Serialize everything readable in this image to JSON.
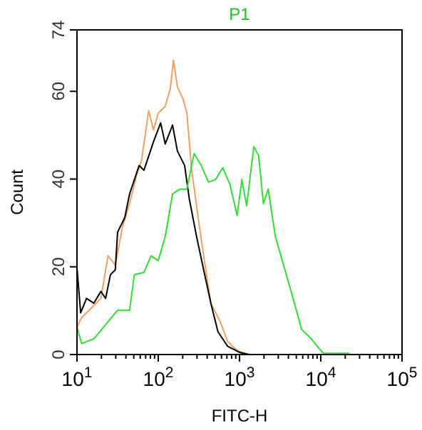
{
  "chart_data": {
    "type": "line",
    "title": "P1",
    "xlabel": "FITC-H",
    "ylabel": "Count",
    "log": "x",
    "xlim": [
      10,
      100000
    ],
    "ylim": [
      0,
      74
    ],
    "xticks": [
      {
        "value": 10,
        "label": "10$^{1}$"
      },
      {
        "value": 20,
        "label": null
      },
      {
        "value": 30,
        "label": null
      },
      {
        "value": 40,
        "label": null
      },
      {
        "value": 50,
        "label": null
      },
      {
        "value": 60,
        "label": null
      },
      {
        "value": 70,
        "label": null
      },
      {
        "value": 80,
        "label": null
      },
      {
        "value": 90,
        "label": null
      },
      {
        "value": 100,
        "label": "10$^{2}$"
      },
      {
        "value": 200,
        "label": null
      },
      {
        "value": 300,
        "label": null
      },
      {
        "value": 400,
        "label": null
      },
      {
        "value": 500,
        "label": null
      },
      {
        "value": 600,
        "label": null
      },
      {
        "value": 700,
        "label": null
      },
      {
        "value": 800,
        "label": null
      },
      {
        "value": 900,
        "label": null
      },
      {
        "value": 1000,
        "label": "10$^{3}$"
      },
      {
        "value": 2000,
        "label": null
      },
      {
        "value": 3000,
        "label": null
      },
      {
        "value": 4000,
        "label": null
      },
      {
        "value": 5000,
        "label": null
      },
      {
        "value": 6000,
        "label": null
      },
      {
        "value": 7000,
        "label": null
      },
      {
        "value": 8000,
        "label": null
      },
      {
        "value": 9000,
        "label": null
      },
      {
        "value": 10000,
        "label": "10$^{4}$"
      },
      {
        "value": 20000,
        "label": null
      },
      {
        "value": 30000,
        "label": null
      },
      {
        "value": 40000,
        "label": null
      },
      {
        "value": 50000,
        "label": null
      },
      {
        "value": 60000,
        "label": null
      },
      {
        "value": 70000,
        "label": null
      },
      {
        "value": 80000,
        "label": null
      },
      {
        "value": 90000,
        "label": null
      },
      {
        "value": 100000,
        "label": "10$^{5}$"
      }
    ],
    "yticks": [
      0,
      20,
      40,
      60,
      74
    ],
    "series": [
      {
        "color": "#f0a060",
        "x": [
          10,
          11.4,
          15,
          19.7,
          24.1,
          29.6,
          36.2,
          44.4,
          54.3,
          62.2,
          76.2,
          87.4,
          100,
          122,
          140,
          154,
          172,
          202,
          225,
          258,
          316,
          362,
          444,
          582,
          713,
          935,
          1312
        ],
        "values": [
          6.3,
          8.4,
          10.6,
          12.8,
          22.5,
          20.4,
          29,
          34.4,
          41,
          44.2,
          55.6,
          51.2,
          55,
          56.6,
          60.4,
          67.1,
          61,
          58.3,
          55,
          42,
          30.1,
          22.5,
          11.7,
          7.4,
          3,
          0.9,
          0
        ]
      },
      {
        "color": "#000000",
        "x": [
          10,
          11.1,
          13.1,
          16.1,
          19.7,
          22.5,
          25.8,
          29.6,
          31.6,
          38.7,
          44.4,
          58.2,
          66.7,
          87.4,
          107,
          122,
          150,
          172,
          211,
          241,
          296,
          362,
          444,
          543,
          713,
          1000,
          1312
        ],
        "values": [
          19.8,
          9.5,
          12.8,
          11.7,
          14.4,
          12.8,
          18.2,
          19.3,
          27.9,
          31.2,
          36.6,
          43.1,
          42,
          48.5,
          52.8,
          48,
          52.3,
          46.4,
          43.1,
          35.5,
          26.9,
          19.3,
          11.7,
          5.2,
          1.9,
          0.5,
          0
        ]
      },
      {
        "color": "#33dd33",
        "x": [
          10,
          11.4,
          16.1,
          22.5,
          31.6,
          44.4,
          50.8,
          66.7,
          81.6,
          100,
          122,
          150,
          184,
          225,
          276,
          338,
          415,
          508,
          622,
          762,
          935,
          1069,
          1224,
          1500,
          1718,
          1968,
          2254,
          2762,
          3622,
          4743,
          5823,
          7624,
          10700,
          15000,
          22540
        ],
        "values": [
          6.3,
          2.5,
          3.6,
          6.8,
          10.1,
          10.1,
          18.2,
          18.7,
          22.5,
          21.4,
          26.9,
          36.6,
          37.7,
          37.7,
          45.8,
          43.1,
          39.3,
          39.9,
          42.6,
          38.8,
          31.7,
          39.9,
          33.9,
          47.4,
          45.3,
          34.4,
          37.7,
          26.9,
          19.3,
          11.7,
          5.7,
          3.6,
          0.3,
          0.3,
          0.3
        ]
      }
    ]
  }
}
